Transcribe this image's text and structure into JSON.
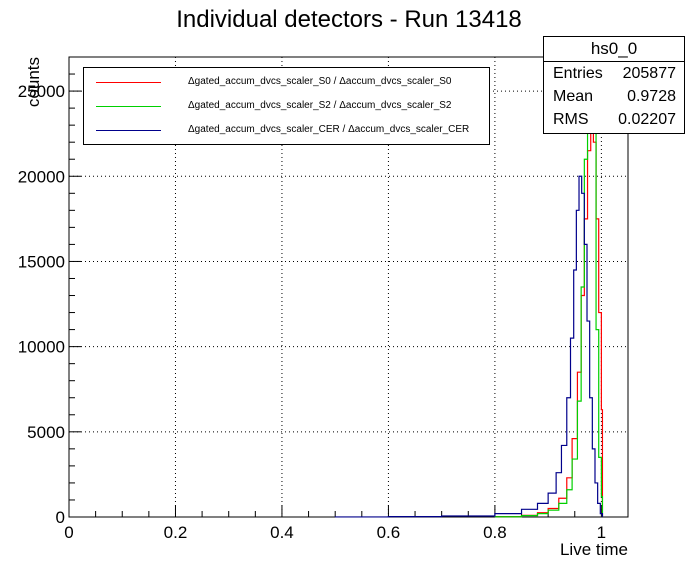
{
  "chart_data": {
    "type": "histogram",
    "title": "Individual detectors - Run 13418",
    "xlabel": "Live time",
    "ylabel": "counts",
    "xlim": [
      0,
      1.05
    ],
    "ylim": [
      0,
      27000
    ],
    "x_ticks": [
      "0",
      "0.2",
      "0.4",
      "0.6",
      "0.8",
      "1"
    ],
    "y_ticks": [
      "0",
      "5000",
      "10000",
      "15000",
      "20000",
      "25000"
    ],
    "grid": true,
    "legend_position": "top-left",
    "series": [
      {
        "name": "Δgated_accum_dvcs_scaler_S0 / Δaccum_dvcs_scaler_S0",
        "color": "#ff0000",
        "points": [
          [
            0.8,
            20
          ],
          [
            0.85,
            100
          ],
          [
            0.88,
            250
          ],
          [
            0.9,
            500
          ],
          [
            0.92,
            1100
          ],
          [
            0.935,
            2300
          ],
          [
            0.945,
            4600
          ],
          [
            0.955,
            8500
          ],
          [
            0.962,
            13000
          ],
          [
            0.968,
            17500
          ],
          [
            0.974,
            21500
          ],
          [
            0.98,
            23000
          ],
          [
            0.985,
            22000
          ],
          [
            0.99,
            17500
          ],
          [
            0.995,
            12000
          ],
          [
            1.0,
            6300
          ],
          [
            1.002,
            0
          ]
        ]
      },
      {
        "name": "Δgated_accum_dvcs_scaler_S2 / Δaccum_dvcs_scaler_S2",
        "color": "#00d000",
        "points": [
          [
            0.8,
            15
          ],
          [
            0.85,
            80
          ],
          [
            0.88,
            200
          ],
          [
            0.9,
            400
          ],
          [
            0.92,
            800
          ],
          [
            0.935,
            1600
          ],
          [
            0.945,
            3400
          ],
          [
            0.955,
            6800
          ],
          [
            0.962,
            13500
          ],
          [
            0.968,
            21000
          ],
          [
            0.974,
            24500
          ],
          [
            0.98,
            24500
          ],
          [
            0.985,
            24500
          ],
          [
            0.99,
            11000
          ],
          [
            0.995,
            3500
          ],
          [
            1.0,
            1200
          ],
          [
            1.002,
            0
          ]
        ]
      },
      {
        "name": "Δgated_accum_dvcs_scaler_CER / Δaccum_dvcs_scaler_CER",
        "color": "#00008b",
        "points": [
          [
            0.5,
            5
          ],
          [
            0.6,
            20
          ],
          [
            0.7,
            60
          ],
          [
            0.8,
            200
          ],
          [
            0.85,
            450
          ],
          [
            0.88,
            800
          ],
          [
            0.9,
            1400
          ],
          [
            0.915,
            2600
          ],
          [
            0.925,
            4200
          ],
          [
            0.935,
            7000
          ],
          [
            0.942,
            10500
          ],
          [
            0.948,
            14500
          ],
          [
            0.953,
            18000
          ],
          [
            0.958,
            20000
          ],
          [
            0.963,
            19000
          ],
          [
            0.968,
            16000
          ],
          [
            0.973,
            11500
          ],
          [
            0.978,
            7000
          ],
          [
            0.983,
            4000
          ],
          [
            0.988,
            2000
          ],
          [
            0.993,
            800
          ],
          [
            0.998,
            200
          ],
          [
            1.002,
            0
          ]
        ]
      }
    ]
  },
  "stats": {
    "title": "hs0_0",
    "entries_label": "Entries",
    "entries_value": "205877",
    "mean_label": "Mean",
    "mean_value": "0.9728",
    "rms_label": "RMS",
    "rms_value": "0.02207"
  }
}
